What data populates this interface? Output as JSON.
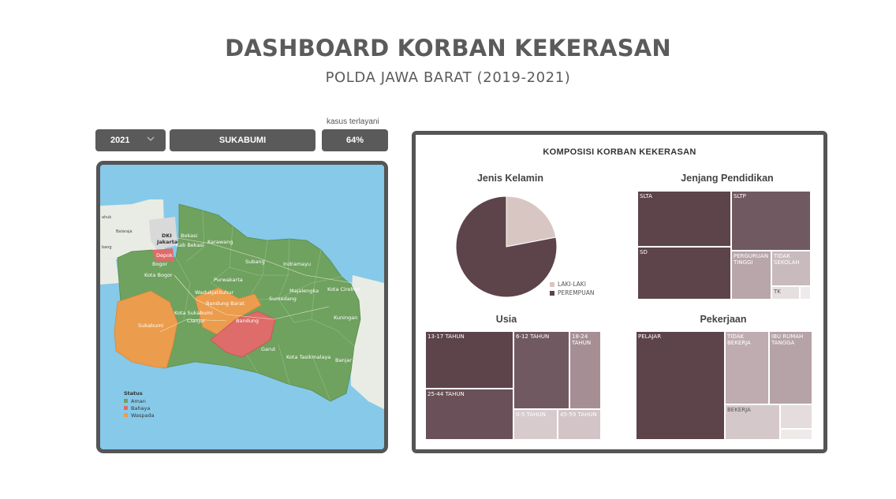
{
  "header": {
    "title": "DASHBOARD KORBAN KEKERASAN",
    "subtitle": "POLDA JAWA BARAT (2019-2021)"
  },
  "filters": {
    "year": "2021",
    "region": "SUKABUMI",
    "percent_label": "kasus terlayani",
    "percent_value": "64%"
  },
  "map": {
    "status_colors": {
      "Aman": "#6fa15f",
      "Bahaya": "#dd6c6a",
      "Waspada": "#eb9c4c",
      "sea": "#86c9e9"
    },
    "labels": {
      "dki": "DKI",
      "jakarta": "Jakarta",
      "bekasi": "Bekasi",
      "kab_bekasi": "Kab Bekasi",
      "karawang": "Karawang",
      "depok": "Depok",
      "bogor": "Bogor",
      "kota_bogor": "Kota Bogor",
      "subang": "Subang",
      "indramayu": "Indramayu",
      "purwakarta": "Purwakarta",
      "wadukjatiluhur": "Wadukjatiluhur",
      "bandung_barat": "Bandung Barat",
      "sumedang": "Sumedang",
      "majalengka": "Majalengka",
      "kota_cirebon": "Kota Cirebon",
      "kota_sukabumi": "Kota Sukabumi",
      "cianjur": "Cianjur",
      "sukabumi": "Sukabumi",
      "bandung": "Bandung",
      "kuningan": "Kuningan",
      "garut": "Garut",
      "kota_tasikmalaya": "Kota Tasikmalaya",
      "banjar": "Banjar",
      "balaraja": "Balaraja",
      "serang": "bang",
      "tangerang": "ahuk"
    },
    "legend": {
      "title": "Status",
      "items": [
        {
          "label": "Aman",
          "color": "#6fa15f"
        },
        {
          "label": "Bahaya",
          "color": "#dd6c6a"
        },
        {
          "label": "Waspada",
          "color": "#eb9c4c"
        }
      ]
    }
  },
  "composition": {
    "title": "KOMPOSISI KORBAN KEKERASAN",
    "gender": {
      "title": "Jenis Kelamin",
      "legend": [
        {
          "label": "LAKI-LAKI",
          "color": "#d8c6c2"
        },
        {
          "label": "PEREMPUAN",
          "color": "#5d434a"
        }
      ]
    },
    "education": {
      "title": "Jenjang Pendidikan",
      "cells": [
        "SLTA",
        "SLTP",
        "SD",
        "PERGURUAN TINGGI",
        "TIDAK SEKOLAH",
        "TK"
      ]
    },
    "age": {
      "title": "Usia",
      "cells": [
        "13-17 TAHUN",
        "6-12 TAHUN",
        "18-24 TAHUN",
        "25-44 TAHUN",
        "0-5 TAHUN",
        "45-59 TAHUN"
      ]
    },
    "occupation": {
      "title": "Pekerjaan",
      "cells": [
        "PELAJAR",
        "TIDAK BEKERJA",
        "IBU RUMAH TANGGA",
        "BEKERJA"
      ]
    }
  },
  "chart_data": [
    {
      "type": "pie",
      "title": "Jenis Kelamin",
      "labels": [
        "LAKI-LAKI",
        "PEREMPUAN"
      ],
      "values": [
        22,
        78
      ],
      "colors": [
        "#d8c6c2",
        "#5d434a"
      ]
    }
  ]
}
